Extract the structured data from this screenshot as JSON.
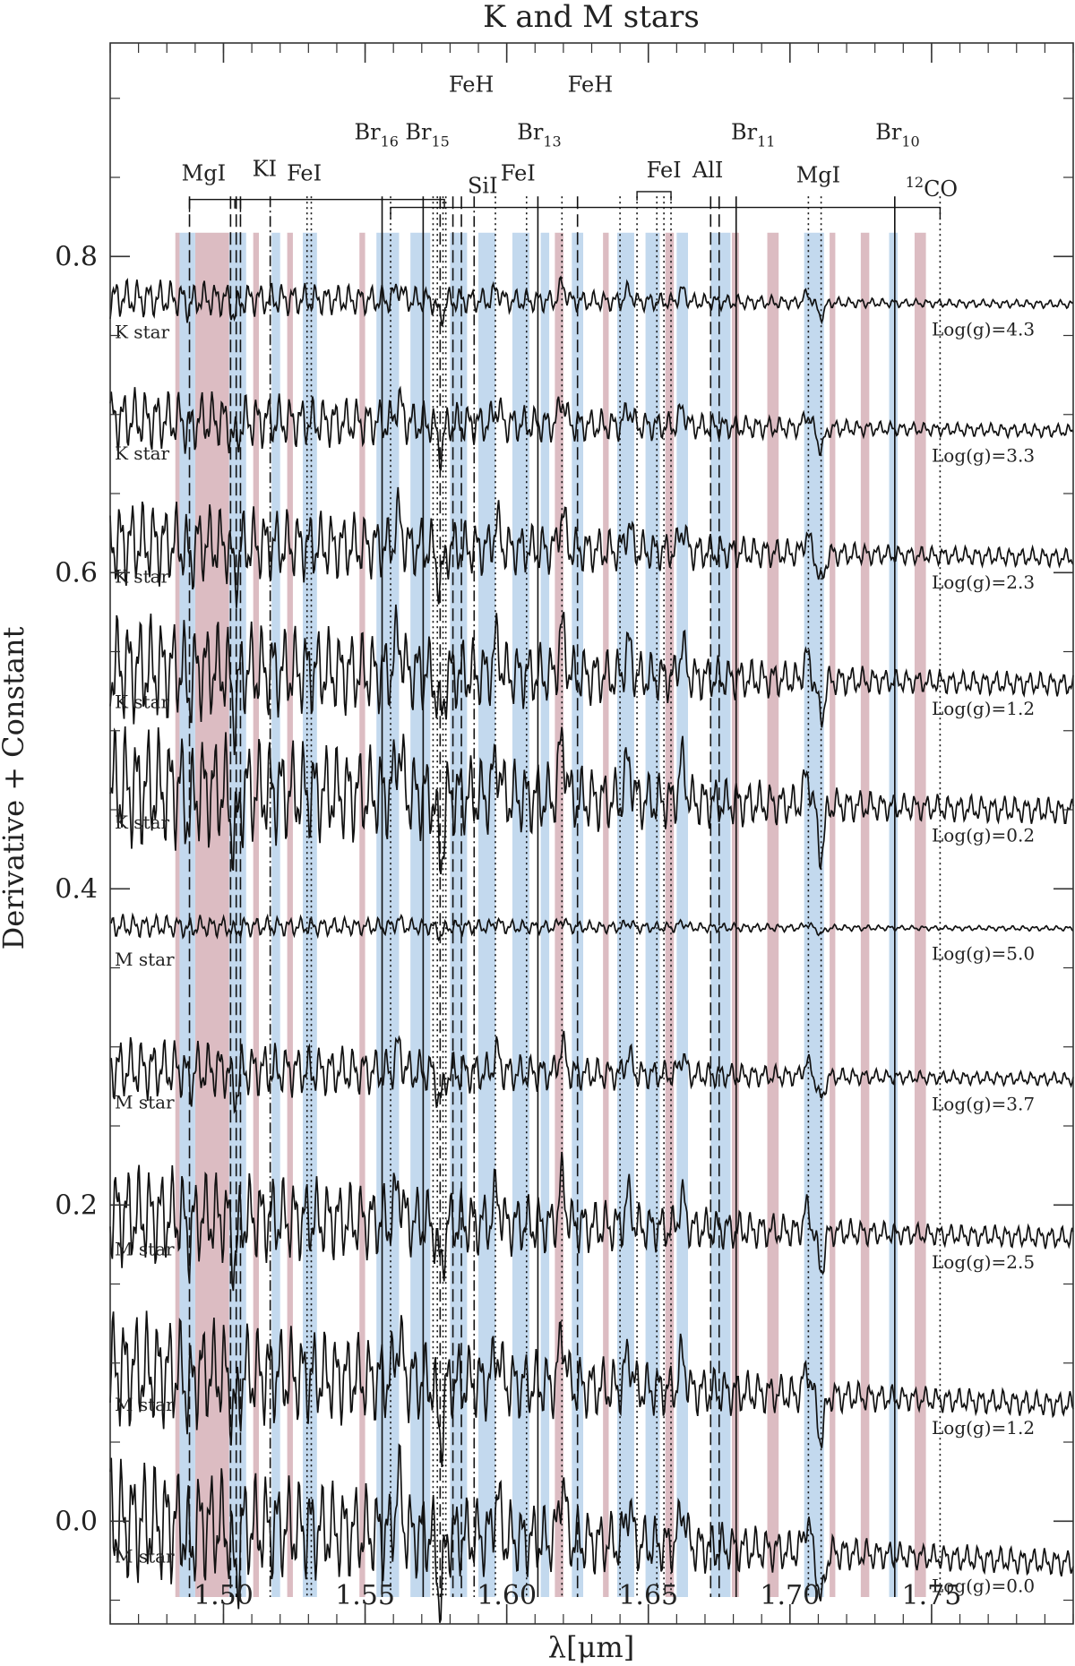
{
  "chart_data": {
    "type": "line",
    "title": "K and M stars",
    "xlabel": "λ[μm]",
    "ylabel": "Derivative + Constant",
    "xlim": [
      1.46,
      1.8
    ],
    "ylim": [
      -0.065,
      0.935
    ],
    "x_ticks": [
      1.5,
      1.55,
      1.6,
      1.65,
      1.7,
      1.75
    ],
    "x_tick_labels": [
      "1.50",
      "1.55",
      "1.60",
      "1.65",
      "1.70",
      "1.75"
    ],
    "y_ticks": [
      0.0,
      0.2,
      0.4,
      0.6,
      0.8
    ],
    "y_tick_labels": [
      "0.0",
      "0.2",
      "0.4",
      "0.6",
      "0.8"
    ],
    "grid": false,
    "series": [
      {
        "name": "K star",
        "gravity_label": "Log(g)=4.3",
        "offset": 0.77,
        "slope": 0.05,
        "noise": 0.005,
        "feature_scale": 0.35
      },
      {
        "name": "K star",
        "gravity_label": "Log(g)=3.3",
        "offset": 0.69,
        "slope": 0.1,
        "noise": 0.008,
        "feature_scale": 0.55
      },
      {
        "name": "K star",
        "gravity_label": "Log(g)=2.3",
        "offset": 0.61,
        "slope": 0.13,
        "noise": 0.011,
        "feature_scale": 0.75
      },
      {
        "name": "K star",
        "gravity_label": "Log(g)=1.2",
        "offset": 0.53,
        "slope": 0.14,
        "noise": 0.014,
        "feature_scale": 0.95
      },
      {
        "name": "K star",
        "gravity_label": "Log(g)=0.2",
        "offset": 0.45,
        "slope": 0.2,
        "noise": 0.016,
        "feature_scale": 1.25
      },
      {
        "name": "M star",
        "gravity_label": "Log(g)=5.0",
        "offset": 0.375,
        "slope": 0.02,
        "noise": 0.003,
        "feature_scale": 0.15
      },
      {
        "name": "M star",
        "gravity_label": "Log(g)=3.7",
        "offset": 0.28,
        "slope": 0.09,
        "noise": 0.008,
        "feature_scale": 0.6
      },
      {
        "name": "M star",
        "gravity_label": "Log(g)=2.5",
        "offset": 0.18,
        "slope": 0.2,
        "noise": 0.013,
        "feature_scale": 0.95
      },
      {
        "name": "M star",
        "gravity_label": "Log(g)=1.2",
        "offset": 0.075,
        "slope": 0.3,
        "noise": 0.015,
        "feature_scale": 1.1
      },
      {
        "name": "M star",
        "gravity_label": "Log(g)=0.0",
        "offset": -0.025,
        "slope": 0.36,
        "noise": 0.016,
        "feature_scale": 1.25
      }
    ],
    "features": [
      {
        "x": 1.5618,
        "depth": 0.025
      },
      {
        "x": 1.5766,
        "depth": -0.03
      },
      {
        "x": 1.5965,
        "depth": 0.02
      },
      {
        "x": 1.6196,
        "depth": 0.03
      },
      {
        "x": 1.643,
        "depth": 0.02
      },
      {
        "x": 1.662,
        "depth": 0.02
      },
      {
        "x": 1.706,
        "depth": 0.015
      },
      {
        "x": 1.711,
        "depth": -0.025
      },
      {
        "x": 1.504,
        "depth": -0.025
      },
      {
        "x": 1.488,
        "depth": -0.012
      }
    ],
    "blue_bands": [
      [
        1.4845,
        1.49
      ],
      [
        1.502,
        1.508
      ],
      [
        1.517,
        1.52
      ],
      [
        1.528,
        1.533
      ],
      [
        1.554,
        1.562
      ],
      [
        1.566,
        1.573
      ],
      [
        1.58,
        1.586
      ],
      [
        1.59,
        1.596
      ],
      [
        1.602,
        1.608
      ],
      [
        1.612,
        1.615
      ],
      [
        1.623,
        1.627
      ],
      [
        1.639,
        1.645
      ],
      [
        1.649,
        1.654
      ],
      [
        1.66,
        1.664
      ],
      [
        1.672,
        1.679
      ],
      [
        1.705,
        1.712
      ],
      [
        1.735,
        1.738
      ]
    ],
    "pink_bands": [
      [
        1.483,
        1.4845
      ],
      [
        1.49,
        1.502
      ],
      [
        1.5105,
        1.5125
      ],
      [
        1.5225,
        1.5245
      ],
      [
        1.548,
        1.55
      ],
      [
        1.617,
        1.62
      ],
      [
        1.634,
        1.636
      ],
      [
        1.656,
        1.659
      ],
      [
        1.6795,
        1.682
      ],
      [
        1.692,
        1.696
      ],
      [
        1.714,
        1.716
      ],
      [
        1.725,
        1.728
      ],
      [
        1.744,
        1.748
      ]
    ],
    "marker_lines": [
      {
        "x": 1.488,
        "style": "dash"
      },
      {
        "x": 1.5025,
        "style": "dash"
      },
      {
        "x": 1.5045,
        "style": "dash"
      },
      {
        "x": 1.506,
        "style": "dash"
      },
      {
        "x": 1.5165,
        "style": "dashdot"
      },
      {
        "x": 1.5295,
        "style": "dot"
      },
      {
        "x": 1.531,
        "style": "dot"
      },
      {
        "x": 1.556,
        "style": "solid"
      },
      {
        "x": 1.559,
        "style": "dot"
      },
      {
        "x": 1.5705,
        "style": "solid"
      },
      {
        "x": 1.574,
        "style": "dot"
      },
      {
        "x": 1.5755,
        "style": "dot"
      },
      {
        "x": 1.5765,
        "style": "dash"
      },
      {
        "x": 1.5775,
        "style": "dot"
      },
      {
        "x": 1.5785,
        "style": "dot"
      },
      {
        "x": 1.581,
        "style": "dash"
      },
      {
        "x": 1.584,
        "style": "dash"
      },
      {
        "x": 1.5885,
        "style": "dashdot"
      },
      {
        "x": 1.596,
        "style": "dot"
      },
      {
        "x": 1.607,
        "style": "dot"
      },
      {
        "x": 1.611,
        "style": "solid"
      },
      {
        "x": 1.6195,
        "style": "dot"
      },
      {
        "x": 1.625,
        "style": "dash"
      },
      {
        "x": 1.64,
        "style": "dot"
      },
      {
        "x": 1.646,
        "style": "dot"
      },
      {
        "x": 1.653,
        "style": "dot"
      },
      {
        "x": 1.6555,
        "style": "dot"
      },
      {
        "x": 1.658,
        "style": "dot"
      },
      {
        "x": 1.672,
        "style": "dash"
      },
      {
        "x": 1.675,
        "style": "dash"
      },
      {
        "x": 1.681,
        "style": "solid"
      },
      {
        "x": 1.7065,
        "style": "dot"
      },
      {
        "x": 1.711,
        "style": "dot"
      },
      {
        "x": 1.737,
        "style": "solid"
      },
      {
        "x": 1.753,
        "style": "dot"
      }
    ],
    "line_ids": [
      {
        "label": "MgI",
        "sub": "",
        "sup": "",
        "x": 1.493,
        "y": 0.848
      },
      {
        "label": "KI",
        "sub": "",
        "sup": "",
        "x": 1.5145,
        "y": 0.851
      },
      {
        "label": "FeI",
        "sub": "",
        "sup": "",
        "x": 1.5285,
        "y": 0.848
      },
      {
        "label": "Br",
        "sub": "16",
        "sup": "",
        "x": 1.554,
        "y": 0.874
      },
      {
        "label": "Br",
        "sub": "15",
        "sup": "",
        "x": 1.572,
        "y": 0.874
      },
      {
        "label": "FeH",
        "sub": "",
        "sup": "",
        "x": 1.5875,
        "y": 0.904
      },
      {
        "label": "SiI",
        "sub": "",
        "sup": "",
        "x": 1.5915,
        "y": 0.84
      },
      {
        "label": "FeI",
        "sub": "",
        "sup": "",
        "x": 1.604,
        "y": 0.848
      },
      {
        "label": "Br",
        "sub": "13",
        "sup": "",
        "x": 1.6115,
        "y": 0.874
      },
      {
        "label": "FeH",
        "sub": "",
        "sup": "",
        "x": 1.6295,
        "y": 0.904
      },
      {
        "label": "FeI",
        "sub": "",
        "sup": "",
        "x": 1.6555,
        "y": 0.85
      },
      {
        "label": "AlI",
        "sub": "",
        "sup": "",
        "x": 1.671,
        "y": 0.85
      },
      {
        "label": "Br",
        "sub": "11",
        "sup": "",
        "x": 1.687,
        "y": 0.874
      },
      {
        "label": "MgI",
        "sub": "",
        "sup": "",
        "x": 1.71,
        "y": 0.847
      },
      {
        "label": "Br",
        "sub": "10",
        "sup": "",
        "x": 1.738,
        "y": 0.874
      },
      {
        "label": "CO",
        "sub": "",
        "sup": "12",
        "x": 1.75,
        "y": 0.838
      }
    ]
  }
}
